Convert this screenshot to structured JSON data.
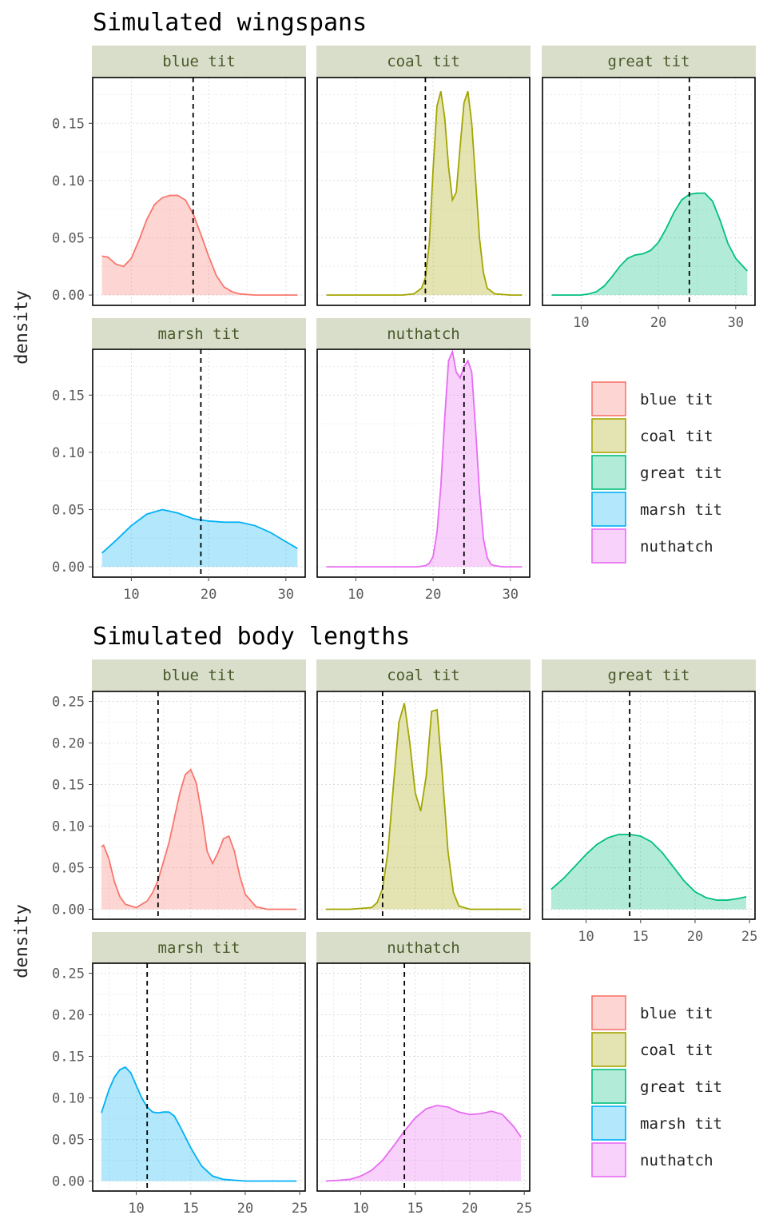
{
  "chart_data": [
    {
      "type": "area",
      "title": "Simulated wingspans",
      "ylabel": "density",
      "xlabel": "",
      "facet_rows": [
        [
          "blue tit",
          "coal tit",
          "great tit"
        ],
        [
          "marsh tit",
          "nuthatch"
        ]
      ],
      "xlim": [
        5,
        32.5
      ],
      "ylim": [
        -0.009,
        0.19
      ],
      "x_ticks": [
        10,
        20,
        30
      ],
      "y_ticks": [
        0.0,
        0.05,
        0.1,
        0.15
      ],
      "y_tick_labels": [
        "0.00",
        "0.05",
        "0.10",
        "0.15"
      ],
      "grid": true,
      "legend_placement": "right",
      "series": [
        {
          "name": "blue tit",
          "color": "#F8766D",
          "fill": "#F8766D",
          "mean": 18.0,
          "x": [
            6.2,
            7.0,
            8.0,
            9.0,
            10.0,
            11.0,
            12.0,
            13.0,
            14.0,
            15.0,
            16.0,
            17.0,
            18.0,
            19.0,
            20.0,
            21.0,
            22.0,
            23.0,
            24.0,
            26.0,
            28.0,
            30.0,
            31.5
          ],
          "y": [
            0.034,
            0.033,
            0.027,
            0.025,
            0.032,
            0.048,
            0.066,
            0.079,
            0.085,
            0.087,
            0.087,
            0.083,
            0.071,
            0.053,
            0.034,
            0.017,
            0.007,
            0.003,
            0.001,
            0.0,
            0.0,
            0.0,
            0.0
          ]
        },
        {
          "name": "coal tit",
          "color": "#A3A500",
          "fill": "#A3A500",
          "mean": 19.0,
          "x": [
            6.2,
            10.0,
            14.0,
            16.0,
            17.5,
            18.5,
            19.0,
            19.5,
            20.0,
            20.5,
            21.0,
            21.5,
            22.0,
            22.5,
            23.0,
            23.5,
            24.0,
            24.5,
            25.0,
            25.5,
            26.0,
            26.5,
            27.0,
            28.0,
            30.0,
            31.5
          ],
          "y": [
            0.0,
            0.0,
            0.0,
            0.0,
            0.001,
            0.006,
            0.015,
            0.045,
            0.11,
            0.165,
            0.178,
            0.155,
            0.112,
            0.083,
            0.09,
            0.13,
            0.168,
            0.178,
            0.15,
            0.1,
            0.05,
            0.02,
            0.006,
            0.001,
            0.0,
            0.0
          ]
        },
        {
          "name": "great tit",
          "color": "#00BF7D",
          "fill": "#00BF7D",
          "mean": 24.0,
          "x": [
            6.2,
            8.0,
            10.0,
            11.0,
            12.0,
            13.0,
            14.0,
            15.0,
            16.0,
            17.0,
            18.0,
            19.0,
            20.0,
            21.0,
            22.0,
            23.0,
            24.0,
            25.0,
            26.0,
            27.0,
            28.0,
            29.0,
            30.0,
            31.5
          ],
          "y": [
            0.0,
            0.0,
            0.0,
            0.001,
            0.003,
            0.008,
            0.016,
            0.025,
            0.032,
            0.035,
            0.036,
            0.039,
            0.046,
            0.058,
            0.072,
            0.083,
            0.088,
            0.089,
            0.089,
            0.082,
            0.065,
            0.045,
            0.032,
            0.021
          ]
        },
        {
          "name": "marsh tit",
          "color": "#00B0F6",
          "fill": "#00B0F6",
          "mean": 19.0,
          "x": [
            6.2,
            8.0,
            10.0,
            12.0,
            14.0,
            16.0,
            18.0,
            20.0,
            22.0,
            24.0,
            26.0,
            28.0,
            30.0,
            31.5
          ],
          "y": [
            0.012,
            0.023,
            0.036,
            0.046,
            0.05,
            0.047,
            0.042,
            0.04,
            0.039,
            0.039,
            0.036,
            0.03,
            0.022,
            0.016
          ]
        },
        {
          "name": "nuthatch",
          "color": "#E76BF3",
          "fill": "#E76BF3",
          "mean": 24.0,
          "x": [
            6.2,
            10.0,
            15.0,
            18.0,
            19.0,
            19.5,
            20.0,
            20.5,
            21.0,
            21.5,
            22.0,
            22.5,
            23.0,
            23.5,
            24.0,
            24.5,
            25.0,
            25.5,
            26.0,
            26.5,
            27.0,
            27.5,
            28.0,
            29.0,
            30.0,
            31.5
          ],
          "y": [
            0.0,
            0.0,
            0.0,
            0.0,
            0.001,
            0.003,
            0.009,
            0.03,
            0.07,
            0.13,
            0.18,
            0.188,
            0.17,
            0.165,
            0.175,
            0.18,
            0.17,
            0.12,
            0.065,
            0.025,
            0.008,
            0.002,
            0.001,
            0.0,
            0.0,
            0.0
          ]
        }
      ]
    },
    {
      "type": "area",
      "title": "Simulated body lengths",
      "ylabel": "density",
      "xlabel": "",
      "facet_rows": [
        [
          "blue tit",
          "coal tit",
          "great tit"
        ],
        [
          "marsh tit",
          "nuthatch"
        ]
      ],
      "xlim": [
        6,
        25.5
      ],
      "ylim": [
        -0.012,
        0.262
      ],
      "x_ticks": [
        10,
        15,
        20,
        25
      ],
      "y_ticks": [
        0.0,
        0.05,
        0.1,
        0.15,
        0.2,
        0.25
      ],
      "y_tick_labels": [
        "0.00",
        "0.05",
        "0.10",
        "0.15",
        "0.20",
        "0.25"
      ],
      "grid": true,
      "legend_placement": "right",
      "series": [
        {
          "name": "blue tit",
          "color": "#F8766D",
          "fill": "#F8766D",
          "mean": 12.0,
          "x": [
            6.8,
            7.0,
            7.5,
            8.0,
            8.5,
            9.0,
            10.0,
            11.0,
            11.5,
            12.0,
            13.0,
            13.5,
            14.0,
            14.5,
            15.0,
            15.5,
            16.0,
            16.5,
            17.0,
            17.5,
            18.0,
            18.5,
            19.0,
            19.5,
            20.0,
            21.0,
            22.0,
            23.0,
            24.0,
            24.7
          ],
          "y": [
            0.075,
            0.077,
            0.06,
            0.033,
            0.015,
            0.006,
            0.002,
            0.01,
            0.02,
            0.035,
            0.08,
            0.11,
            0.14,
            0.162,
            0.168,
            0.152,
            0.115,
            0.07,
            0.055,
            0.068,
            0.085,
            0.088,
            0.07,
            0.04,
            0.018,
            0.003,
            0.0,
            0.0,
            0.0,
            0.0
          ]
        },
        {
          "name": "coal tit",
          "color": "#A3A500",
          "fill": "#A3A500",
          "mean": 12.0,
          "x": [
            6.8,
            9.0,
            11.0,
            11.5,
            12.0,
            12.5,
            13.0,
            13.5,
            14.0,
            14.5,
            15.0,
            15.5,
            16.0,
            16.5,
            17.0,
            17.5,
            18.0,
            18.5,
            19.0,
            20.0,
            22.0,
            24.7
          ],
          "y": [
            0.0,
            0.0,
            0.002,
            0.008,
            0.025,
            0.07,
            0.15,
            0.225,
            0.248,
            0.2,
            0.14,
            0.118,
            0.16,
            0.238,
            0.24,
            0.16,
            0.07,
            0.02,
            0.004,
            0.0,
            0.0,
            0.0
          ]
        },
        {
          "name": "great tit",
          "color": "#00BF7D",
          "fill": "#00BF7D",
          "mean": 14.0,
          "x": [
            6.8,
            8.0,
            9.0,
            10.0,
            11.0,
            12.0,
            13.0,
            14.0,
            15.0,
            16.0,
            17.0,
            18.0,
            19.0,
            20.0,
            21.0,
            22.0,
            23.0,
            24.0,
            24.7
          ],
          "y": [
            0.024,
            0.038,
            0.052,
            0.066,
            0.078,
            0.086,
            0.09,
            0.09,
            0.088,
            0.081,
            0.068,
            0.051,
            0.034,
            0.021,
            0.014,
            0.011,
            0.011,
            0.013,
            0.015
          ]
        },
        {
          "name": "marsh tit",
          "color": "#00B0F6",
          "fill": "#00B0F6",
          "mean": 11.0,
          "x": [
            6.8,
            7.5,
            8.0,
            8.5,
            9.0,
            9.5,
            10.0,
            10.5,
            11.0,
            11.5,
            12.0,
            12.5,
            13.0,
            13.5,
            14.0,
            15.0,
            16.0,
            17.0,
            18.0,
            20.0,
            22.0,
            24.7
          ],
          "y": [
            0.082,
            0.11,
            0.125,
            0.134,
            0.137,
            0.13,
            0.115,
            0.1,
            0.089,
            0.083,
            0.082,
            0.083,
            0.083,
            0.078,
            0.066,
            0.04,
            0.018,
            0.006,
            0.002,
            0.0,
            0.0,
            0.0
          ]
        },
        {
          "name": "nuthatch",
          "color": "#E76BF3",
          "fill": "#E76BF3",
          "mean": 14.0,
          "x": [
            6.8,
            8.0,
            9.0,
            10.0,
            11.0,
            12.0,
            13.0,
            14.0,
            15.0,
            16.0,
            17.0,
            18.0,
            19.0,
            20.0,
            21.0,
            22.0,
            23.0,
            24.0,
            24.7
          ],
          "y": [
            0.0,
            0.001,
            0.002,
            0.006,
            0.013,
            0.025,
            0.042,
            0.06,
            0.076,
            0.087,
            0.091,
            0.089,
            0.083,
            0.08,
            0.081,
            0.084,
            0.08,
            0.066,
            0.053
          ]
        }
      ]
    }
  ]
}
